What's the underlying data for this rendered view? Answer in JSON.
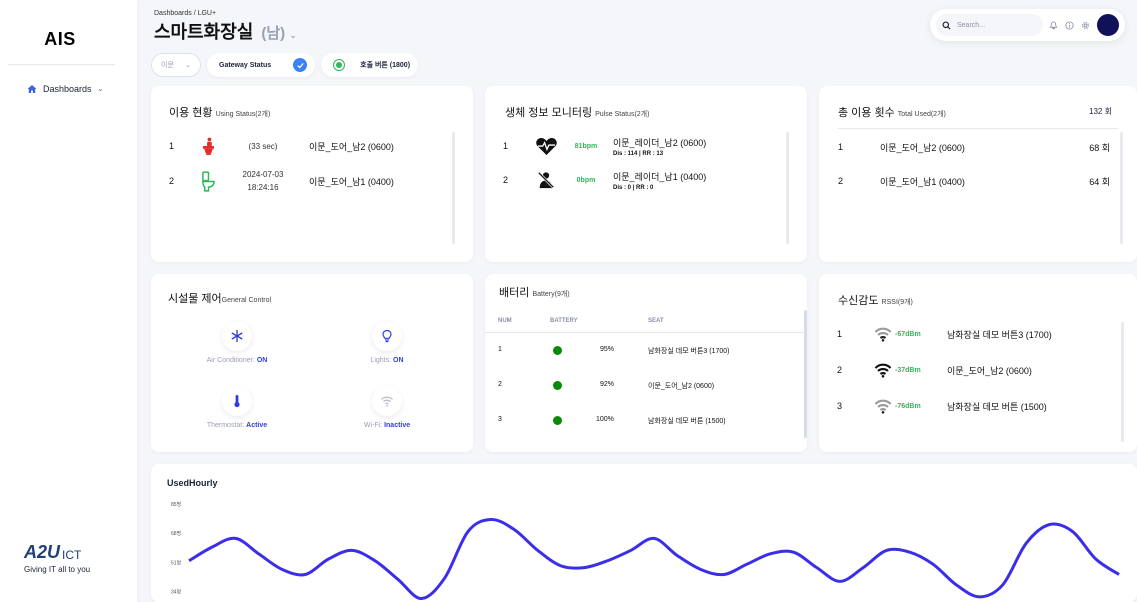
{
  "sidebar": {
    "logo": "AIS",
    "nav": [
      {
        "label": "Dashboards",
        "icon": "home-icon"
      }
    ],
    "brand": {
      "mark": "A2U",
      "suffix": "ICT",
      "tagline": "Giving IT all to you"
    }
  },
  "header": {
    "breadcrumb": "Dashboards  /  LGU+",
    "title": "스마트화장실",
    "subtitle": "(남)",
    "search_placeholder": "Search..."
  },
  "controls": {
    "select_value": "이문",
    "gateway_label": "Gateway Status",
    "call_label": "호출 버튼 (1800)"
  },
  "usage": {
    "title": "이용 현황",
    "title_small": "Using Status(2개)",
    "rows": [
      {
        "num": "1",
        "time": "(33 sec)",
        "name": "이문_도어_남2 (0600)",
        "icon": "person-on-toilet-icon",
        "color": "#e52b2b"
      },
      {
        "num": "2",
        "time": "2024-07-03\n18:24:16",
        "name": "이문_도어_남1 (0400)",
        "icon": "toilet-icon",
        "color": "#2eb85c"
      }
    ]
  },
  "pulse": {
    "title": "생체 정보 모니터링",
    "title_small": "Pulse Status(2개)",
    "rows": [
      {
        "num": "1",
        "bpm": "81bpm",
        "name": "이문_레이더_남2 (0600)",
        "detail": "Dis : 114 | RR : 13",
        "icon": "heart-pulse-icon"
      },
      {
        "num": "2",
        "bpm": "0bpm",
        "name": "이문_레이더_남1 (0400)",
        "detail": "Dis : 0 | RR : 0",
        "icon": "person-off-icon"
      }
    ]
  },
  "total": {
    "title": "총 이용 횟수",
    "title_small": "Total Used(2개)",
    "total": "132 회",
    "rows": [
      {
        "num": "1",
        "name": "이문_도어_남2 (0600)",
        "count": "68 회"
      },
      {
        "num": "2",
        "name": "이문_도어_남1 (0400)",
        "count": "64 회"
      }
    ]
  },
  "general": {
    "title": "시설물 제어",
    "title_small": "General Control",
    "items": [
      {
        "label": "Air Conditioner:",
        "state": "ON",
        "icon": "snowflake-icon"
      },
      {
        "label": "Lights:",
        "state": "ON",
        "icon": "lightbulb-icon"
      },
      {
        "label": "Thermostat:",
        "state": "Active",
        "icon": "thermometer-icon"
      },
      {
        "label": "Wi-Fi:",
        "state": "Inactive",
        "icon": "wifi-icon"
      }
    ]
  },
  "battery": {
    "title": "배터리",
    "title_small": "Battery(9개)",
    "columns": [
      "NUM",
      "BATTERY",
      "SEAT"
    ],
    "rows": [
      {
        "num": "1",
        "pct": "95%",
        "seat": "남화장실 데모 버튼3 (1700)"
      },
      {
        "num": "2",
        "pct": "92%",
        "seat": "이문_도어_남2 (0600)"
      },
      {
        "num": "3",
        "pct": "100%",
        "seat": "남화장실 데모 버튼 (1500)"
      }
    ]
  },
  "rssi": {
    "title": "수신감도",
    "title_small": "RSSI(9개)",
    "rows": [
      {
        "num": "1",
        "dbm": "-67dBm",
        "name": "남화장실 데모 버튼3 (1700)"
      },
      {
        "num": "2",
        "dbm": "-37dBm",
        "name": "이문_도어_남2 (0600)"
      },
      {
        "num": "3",
        "dbm": "-76dBm",
        "name": "남화장실 데모 버튼 (1500)"
      }
    ]
  },
  "chart_data": {
    "type": "line",
    "title": "UsedHourly",
    "y_ticks": [
      "85명",
      "68명",
      "51명",
      "34명"
    ],
    "ylim": [
      28,
      85
    ],
    "series": [
      {
        "values": [
          52,
          60,
          65,
          56,
          47,
          44,
          53,
          58,
          52,
          41,
          30,
          42,
          69,
          76,
          70,
          58,
          49,
          48,
          52,
          58,
          65,
          55,
          47,
          44,
          50,
          56,
          57,
          48,
          40,
          48,
          58,
          57,
          50,
          38,
          31,
          38,
          62,
          73,
          69,
          53,
          44
        ]
      }
    ],
    "color": "#3a2ee8"
  }
}
